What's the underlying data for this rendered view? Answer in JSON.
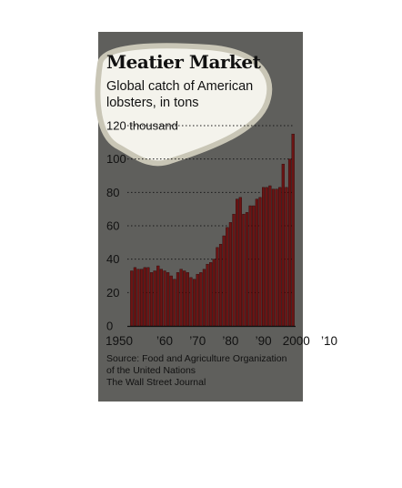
{
  "title": "Meatier Market",
  "subtitle": "Global catch of American lobsters, in tons",
  "source": [
    "Source: Food and Agriculture Organization",
    "of the United Nations",
    "The Wall Street Journal"
  ],
  "colors": {
    "panel": "#5f5f5c",
    "bar": "#6b1414",
    "bar_edge": "#2a0606",
    "highlight": "#f4f3ec"
  },
  "chart_data": {
    "type": "bar",
    "title": "Meatier Market",
    "subtitle": "Global catch of American lobsters, in tons",
    "ylabel": "",
    "xlabel": "",
    "ylim": [
      0,
      120
    ],
    "yticks": [
      0,
      20,
      40,
      60,
      80,
      100,
      120
    ],
    "ytick_labels": [
      "0",
      "20",
      "40",
      "60",
      "80",
      "100",
      "120 thousand"
    ],
    "xticks": [
      1950,
      1960,
      1970,
      1980,
      1990,
      2000,
      2010
    ],
    "xtick_labels": [
      "1950",
      "’60",
      "’70",
      "’80",
      "’90",
      "2000",
      "’10"
    ],
    "grid": true,
    "x_start": 1950,
    "values": [
      33,
      35,
      34,
      34,
      35,
      35,
      32,
      33,
      36,
      34,
      33,
      32,
      30,
      28,
      32,
      34,
      33,
      32,
      29,
      28,
      31,
      32,
      34,
      37,
      38,
      40,
      47,
      49,
      54,
      59,
      62,
      67,
      76,
      77,
      67,
      68,
      72,
      72,
      76,
      77,
      83,
      83,
      84,
      82,
      82,
      83,
      97,
      83,
      100,
      115
    ]
  }
}
